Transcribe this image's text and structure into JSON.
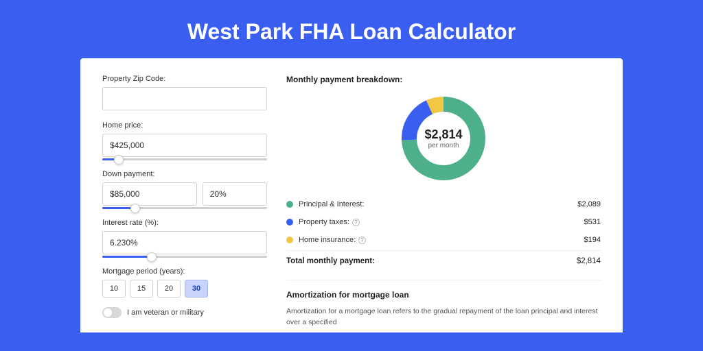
{
  "page": {
    "title": "West Park FHA Loan Calculator",
    "background_color": "#3a5ef0",
    "card_background": "#ffffff"
  },
  "inputs": {
    "zip": {
      "label": "Property Zip Code:",
      "value": ""
    },
    "home_price": {
      "label": "Home price:",
      "value": "$425,000",
      "slider_pct": 10
    },
    "down_payment": {
      "label": "Down payment:",
      "amount": "$85,000",
      "percent": "20%",
      "slider_pct": 20
    },
    "interest_rate": {
      "label": "Interest rate (%):",
      "value": "6.230%",
      "slider_pct": 30
    },
    "period": {
      "label": "Mortgage period (years):",
      "options": [
        "10",
        "15",
        "20",
        "30"
      ],
      "selected": "30"
    },
    "veteran": {
      "label": "I am veteran or military",
      "checked": false
    }
  },
  "breakdown": {
    "title": "Monthly payment breakdown:",
    "center_amount": "$2,814",
    "center_sub": "per month",
    "donut": {
      "radius": 50,
      "stroke": 22,
      "slices": [
        {
          "color": "#4db08a",
          "pct": 74.2
        },
        {
          "color": "#3a5ef0",
          "pct": 18.9
        },
        {
          "color": "#f2c744",
          "pct": 6.9
        }
      ]
    },
    "items": [
      {
        "label": "Principal & Interest:",
        "value": "$2,089",
        "color": "#4db08a",
        "info": false
      },
      {
        "label": "Property taxes:",
        "value": "$531",
        "color": "#3a5ef0",
        "info": true
      },
      {
        "label": "Home insurance:",
        "value": "$194",
        "color": "#f2c744",
        "info": true
      }
    ],
    "total": {
      "label": "Total monthly payment:",
      "value": "$2,814"
    }
  },
  "amortization": {
    "title": "Amortization for mortgage loan",
    "text": "Amortization for a mortgage loan refers to the gradual repayment of the loan principal and interest over a specified"
  }
}
